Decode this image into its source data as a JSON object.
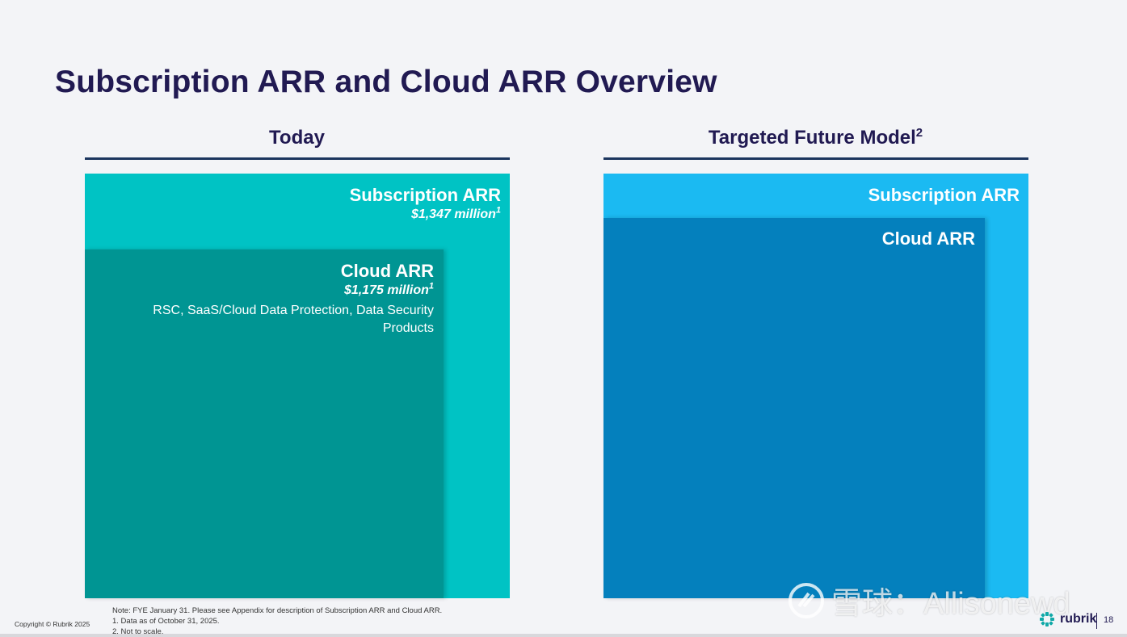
{
  "title": "Subscription ARR and Cloud ARR Overview",
  "colors": {
    "title": "#211a52",
    "today_outer": "#00c3c4",
    "today_inner": "#009593",
    "future_outer": "#1bbaf2",
    "future_inner": "#0480bd"
  },
  "today": {
    "heading": "Today",
    "subscription": {
      "name": "Subscription ARR",
      "value": "$1,347 million",
      "footnote": "1"
    },
    "cloud": {
      "name": "Cloud ARR",
      "value": "$1,175 million",
      "footnote": "1",
      "description": "RSC, SaaS/Cloud Data Protection, Data Security Products"
    }
  },
  "future": {
    "heading": "Targeted Future Model",
    "heading_footnote": "2",
    "subscription": {
      "name": "Subscription ARR"
    },
    "cloud": {
      "name": "Cloud ARR"
    }
  },
  "notes": [
    "Note:  FYE January 31.  Please see Appendix for description of Subscription ARR and Cloud ARR.",
    "1. Data as of October 31, 2025.",
    "2. Not to scale."
  ],
  "copyright": "Copyright © Rubrik 2025",
  "watermark": "雪球：Allisonewd",
  "brand": "rubrik",
  "page_number": "18"
}
